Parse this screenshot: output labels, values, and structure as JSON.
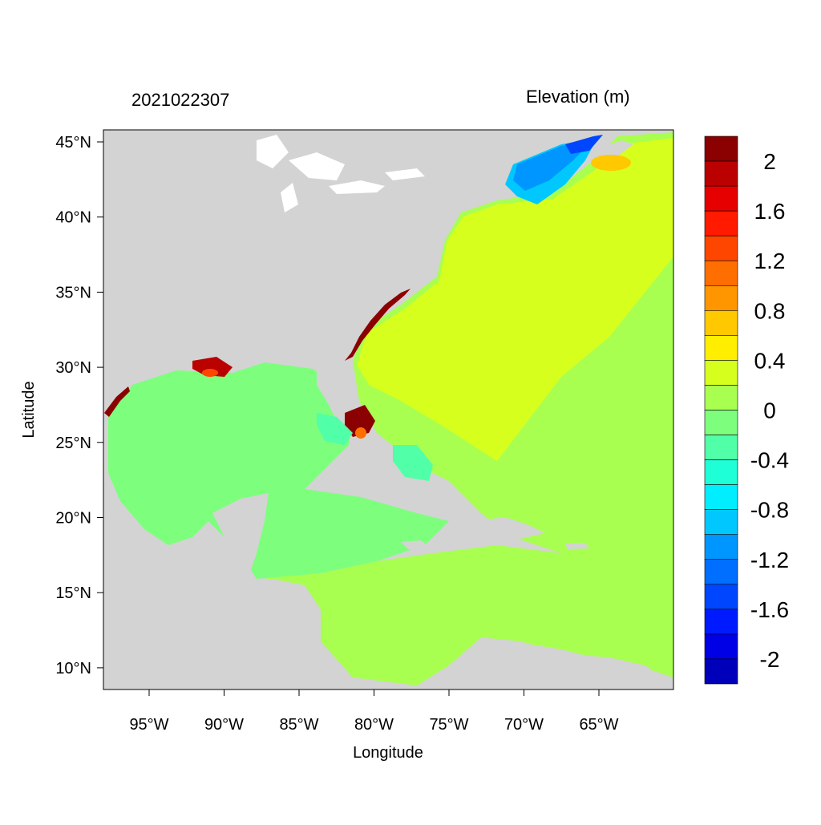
{
  "titles": {
    "left": "2021022307",
    "right": "Elevation (m)"
  },
  "axes": {
    "xlabel": "Longitude",
    "ylabel": "Latitude",
    "xticks": [
      "95°W",
      "90°W",
      "85°W",
      "80°W",
      "75°W",
      "70°W",
      "65°W"
    ],
    "yticks": [
      "45°N",
      "40°N",
      "35°N",
      "30°N",
      "25°N",
      "20°N",
      "15°N",
      "10°N"
    ]
  },
  "colorbar": {
    "labels": [
      "2",
      "1.6",
      "1.2",
      "0.8",
      "0.4",
      "0",
      "-0.4",
      "-0.8",
      "-1.2",
      "-1.6",
      "-2"
    ],
    "colors_top_to_bottom": [
      "#8b0000",
      "#bb0000",
      "#e60000",
      "#ff1a00",
      "#ff4600",
      "#ff6e00",
      "#ff9600",
      "#ffc800",
      "#ffee00",
      "#d7ff1e",
      "#a8ff50",
      "#7dff7d",
      "#50ffa8",
      "#1effd7",
      "#00eeff",
      "#00c8ff",
      "#0096ff",
      "#006eff",
      "#0046ff",
      "#001aff",
      "#0000e6",
      "#0000bb"
    ]
  },
  "legend_colors": {
    "land": "#d3d3d3",
    "lakes": "#ffffff",
    "ocean_zero": "#a8ff50",
    "gulf_negative": "#7dff7d",
    "atlantic_positive": "#d7ff1e",
    "gulf_of_maine": "#0096ff",
    "surge_high": "#8b0000"
  }
}
